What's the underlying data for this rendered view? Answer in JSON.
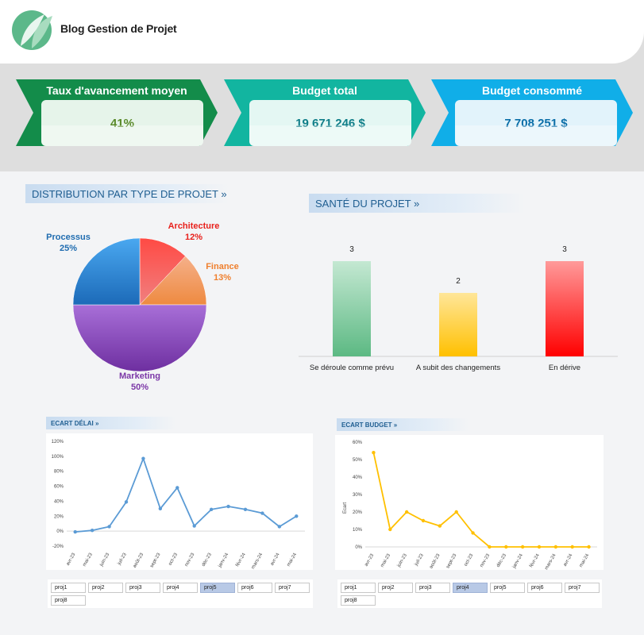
{
  "header": {
    "brand": "Blog Gestion de Projet"
  },
  "kpis": [
    {
      "title": "Taux d'avancement moyen",
      "value": "41%",
      "color": "#138c4a",
      "box": "#e6f4ea",
      "text": "#5a8a2a"
    },
    {
      "title": "Budget total",
      "value": "19 671 246 $",
      "color": "#12b5a0",
      "box": "#e4f7f3",
      "text": "#0e7d88"
    },
    {
      "title": "Budget consommé",
      "value": "7 708 251 $",
      "color": "#10aee8",
      "box": "#e2f3fb",
      "text": "#0a6ea8"
    }
  ],
  "distribution": {
    "title": "DISTRIBUTION PAR TYPE DE PROJET »",
    "labels": [
      {
        "name": "Architecture",
        "pct": "12%",
        "color": "#e8211c"
      },
      {
        "name": "Finance",
        "pct": "13%",
        "color": "#ef7f2d"
      },
      {
        "name": "Marketing",
        "pct": "50%",
        "color": "#7b37a7"
      },
      {
        "name": "Processus",
        "pct": "25%",
        "color": "#1f6cb0"
      }
    ]
  },
  "health": {
    "title": "SANTÉ DU PROJET »",
    "bars": [
      {
        "label": "Se déroule comme prévu",
        "value": "3"
      },
      {
        "label": "A subit des changements",
        "value": "2"
      },
      {
        "label": "En dérive",
        "value": "3"
      }
    ]
  },
  "ecart_delai": {
    "title": "ECART DÉLAI »"
  },
  "ecart_budget": {
    "title": "ECART BUDGET »",
    "ylabel": "Ecart"
  },
  "slicer_delai": {
    "items": [
      "proj1",
      "proj2",
      "proj3",
      "proj4",
      "proj5",
      "proj6",
      "proj7",
      "proj8"
    ],
    "selected": "proj5"
  },
  "slicer_budget": {
    "items": [
      "proj1",
      "proj2",
      "proj3",
      "proj4",
      "proj5",
      "proj6",
      "proj7",
      "proj8"
    ],
    "selected": "proj4"
  },
  "chart_data": [
    {
      "type": "pie",
      "categories": [
        "Architecture",
        "Finance",
        "Marketing",
        "Processus"
      ],
      "values": [
        12,
        13,
        50,
        25
      ],
      "colors": [
        "#f23a33",
        "#f0a070",
        "#8b4fc4",
        "#2c8ee0"
      ]
    },
    {
      "type": "bar",
      "categories": [
        "Se déroule comme prévu",
        "A subit des changements",
        "En dérive"
      ],
      "values": [
        3,
        2,
        3
      ],
      "colors": [
        "#63be86",
        "#ffc000",
        "#ff0000"
      ]
    },
    {
      "type": "line",
      "x": [
        "avr-23",
        "mai-23",
        "juin-23",
        "juil-23",
        "août-23",
        "sept-23",
        "oct-23",
        "nov-23",
        "déc-23",
        "janv-24",
        "févr-24",
        "mars-24",
        "avr-24",
        "mai-24"
      ],
      "values": [
        -1,
        1,
        6,
        39,
        97,
        30,
        58,
        7,
        29,
        33,
        29,
        24,
        6,
        20
      ],
      "yticks": [
        "120%",
        "100%",
        "80%",
        "60%",
        "40%",
        "20%",
        "0%",
        "-20%"
      ],
      "ylim": [
        -20,
        120
      ],
      "color": "#5b9bd5"
    },
    {
      "type": "line",
      "x": [
        "avr-23",
        "mai-23",
        "juin-23",
        "juil-23",
        "août-23",
        "sept-23",
        "oct-23",
        "nov-23",
        "déc-23",
        "janv-24",
        "févr-24",
        "mars-24",
        "avr-24",
        "mai-24"
      ],
      "values": [
        54,
        10,
        20,
        15,
        12,
        20,
        8,
        0,
        0,
        0,
        0,
        0,
        0,
        0
      ],
      "yticks": [
        "60%",
        "50%",
        "40%",
        "30%",
        "20%",
        "10%",
        "0%"
      ],
      "ylim": [
        0,
        60
      ],
      "ylabel": "Ecart",
      "color": "#ffc000"
    }
  ]
}
